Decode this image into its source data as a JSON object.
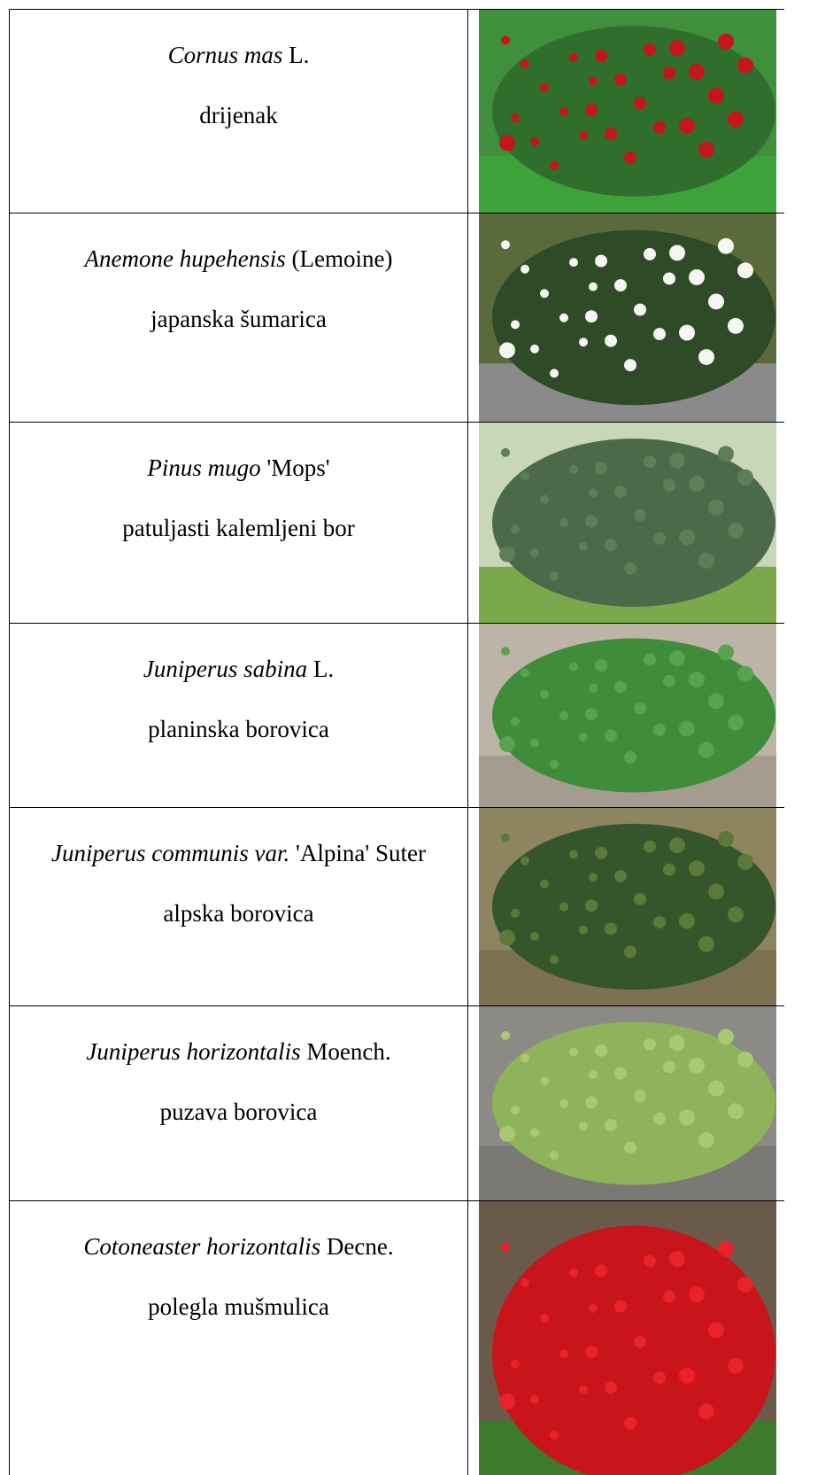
{
  "table": {
    "rows": [
      {
        "latin_italic": "Cornus mas",
        "latin_rest": "L.",
        "common": "drijenak"
      },
      {
        "latin_italic": "Anemone hupehensis",
        "latin_rest": "(Lemoine)",
        "common": "japanska šumarica"
      },
      {
        "latin_italic": "Pinus mugo",
        "latin_rest": "'Mops'",
        "common": "patuljasti kalemljeni bor"
      },
      {
        "latin_italic": "Juniperus sabina",
        "latin_rest": "L.",
        "common": "planinska borovica"
      },
      {
        "latin_italic": "Juniperus communis var.",
        "latin_rest": "'Alpina' Suter",
        "common": "alpska borovica"
      },
      {
        "latin_italic": "Juniperus horizontalis",
        "latin_rest": "Moench.",
        "common": "puzava borovica"
      },
      {
        "latin_italic": "Cotoneaster horizontalis",
        "latin_rest": "Decne.",
        "common": "polegla mušmulica"
      }
    ]
  }
}
